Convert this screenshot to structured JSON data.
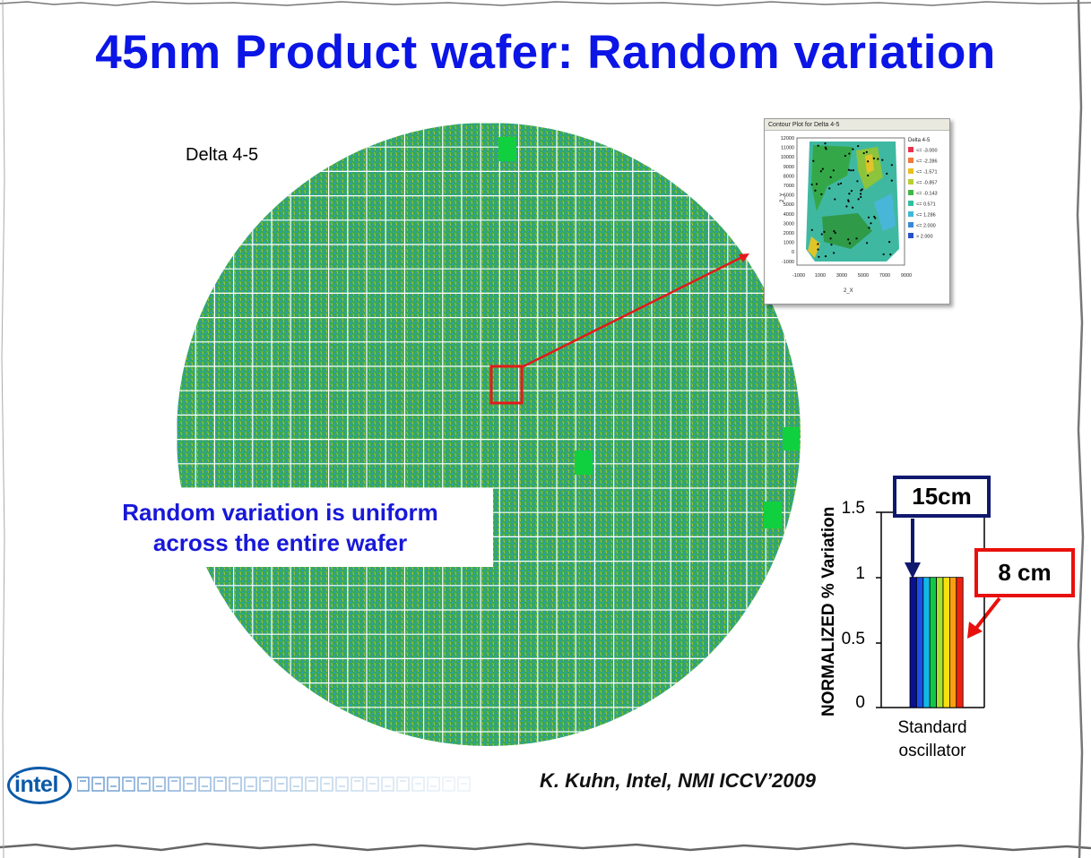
{
  "slide": {
    "title": "45nm Product wafer: Random variation",
    "delta_label": "Delta 4-5",
    "callout": {
      "line1": "Random variation is uniform",
      "line2": "across the entire wafer"
    },
    "citation": "K. Kuhn, Intel, NMI ICCV’2009",
    "logo_text": "intel"
  },
  "contour_inset": {
    "title": "Contour Plot for Delta 4-5",
    "y_axis_label": "2_Y",
    "x_axis_label": "2_X",
    "y_ticks": [
      "12000",
      "11000",
      "10000",
      "9000",
      "8000",
      "7000",
      "6000",
      "5000",
      "4000",
      "3000",
      "2000",
      "1000",
      "0",
      "-1000"
    ],
    "x_ticks": [
      "-1000",
      "1000",
      "3000",
      "5000",
      "7000",
      "9000"
    ],
    "legend_title": "Delta 4-5",
    "legend": [
      {
        "label": "<= -3.000",
        "color": "#e8324c"
      },
      {
        "label": "<= -2.286",
        "color": "#f07a38"
      },
      {
        "label": "<= -1.571",
        "color": "#e8c020"
      },
      {
        "label": "<= -0.857",
        "color": "#b8d030"
      },
      {
        "label": "<= -0.143",
        "color": "#40b848"
      },
      {
        "label": "<= 0.571",
        "color": "#30c0a0"
      },
      {
        "label": "<= 1.286",
        "color": "#40b8d8"
      },
      {
        "label": "<= 2.000",
        "color": "#3888d8"
      },
      {
        "label": "> 2.000",
        "color": "#2850c8"
      }
    ]
  },
  "chart_data": {
    "type": "bar",
    "ylabel": "NORMALIZED % Variation",
    "categories": [
      "Standard oscillator"
    ],
    "category_lines": [
      "Standard",
      "oscillator"
    ],
    "ylim": [
      0,
      1.5
    ],
    "y_ticks": [
      "1.5",
      "1",
      "0.5",
      "0"
    ],
    "bar_value": 1.0,
    "stripes": [
      "#0a1090",
      "#1a50e8",
      "#10b8e8",
      "#10c848",
      "#a8e030",
      "#f8e010",
      "#f8a010",
      "#f02010"
    ],
    "annotations": [
      {
        "text": "15cm",
        "border_color": "#10186e"
      },
      {
        "text": "8 cm",
        "border_color": "#e8100c"
      }
    ]
  }
}
